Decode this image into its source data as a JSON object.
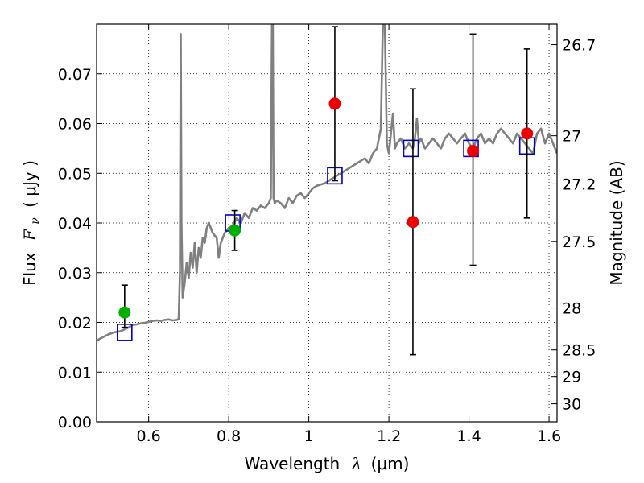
{
  "chart_data": {
    "type": "scatter",
    "xlabel": {
      "prefix": "Wavelength",
      "symbol": "λ",
      "unit": "(μm)"
    },
    "ylabel": {
      "prefix": "Flux",
      "symbol": "F",
      "subscript": "ν",
      "unit": "( μJy )"
    },
    "ylabel_right": "Magnitude (AB)",
    "xlim": [
      0.47,
      1.62
    ],
    "ylim": [
      0.0,
      0.08
    ],
    "grid": true,
    "x_ticks": [
      {
        "value": 0.6,
        "label": "0.6"
      },
      {
        "value": 0.8,
        "label": "0.8"
      },
      {
        "value": 1.0,
        "label": "1"
      },
      {
        "value": 1.2,
        "label": "1.2"
      },
      {
        "value": 1.4,
        "label": "1.4"
      },
      {
        "value": 1.6,
        "label": "1.6"
      }
    ],
    "y_ticks": [
      {
        "value": 0.0,
        "label": "0.00"
      },
      {
        "value": 0.01,
        "label": "0.01"
      },
      {
        "value": 0.02,
        "label": "0.02"
      },
      {
        "value": 0.03,
        "label": "0.03"
      },
      {
        "value": 0.04,
        "label": "0.04"
      },
      {
        "value": 0.05,
        "label": "0.05"
      },
      {
        "value": 0.06,
        "label": "0.06"
      },
      {
        "value": 0.07,
        "label": "0.07"
      }
    ],
    "right_ticks": [
      {
        "mag": 26.7,
        "label": "26.7"
      },
      {
        "mag": 27.0,
        "label": "27"
      },
      {
        "mag": 27.2,
        "label": "27.2"
      },
      {
        "mag": 27.5,
        "label": "27.5"
      },
      {
        "mag": 28.0,
        "label": "28"
      },
      {
        "mag": 28.5,
        "label": "28.5"
      },
      {
        "mag": 29.0,
        "label": "29"
      },
      {
        "mag": 30.0,
        "label": "30"
      }
    ],
    "colors": {
      "model": "#808080",
      "model_photometry": "#0000cc",
      "detection": "#00b000",
      "non_detection": "#ee0000",
      "errorbar": "#000000",
      "grid": "#000000"
    },
    "model_spectrum": {
      "x": [
        0.47,
        0.48,
        0.49,
        0.5,
        0.51,
        0.52,
        0.53,
        0.54,
        0.55,
        0.56,
        0.57,
        0.58,
        0.59,
        0.6,
        0.61,
        0.62,
        0.63,
        0.64,
        0.65,
        0.66,
        0.67,
        0.675,
        0.678,
        0.68,
        0.682,
        0.685,
        0.69,
        0.695,
        0.7,
        0.705,
        0.71,
        0.715,
        0.72,
        0.725,
        0.73,
        0.735,
        0.74,
        0.745,
        0.75,
        0.76,
        0.77,
        0.775,
        0.78,
        0.79,
        0.8,
        0.81,
        0.82,
        0.83,
        0.84,
        0.85,
        0.86,
        0.87,
        0.88,
        0.89,
        0.9,
        0.905,
        0.908,
        0.91,
        0.912,
        0.915,
        0.92,
        0.93,
        0.94,
        0.95,
        0.96,
        0.97,
        0.98,
        0.99,
        1.0,
        1.01,
        1.02,
        1.04,
        1.06,
        1.08,
        1.1,
        1.12,
        1.14,
        1.15,
        1.16,
        1.17,
        1.18,
        1.185,
        1.19,
        1.195,
        1.2,
        1.205,
        1.21,
        1.215,
        1.22,
        1.23,
        1.24,
        1.25,
        1.26,
        1.265,
        1.27,
        1.275,
        1.28,
        1.29,
        1.3,
        1.31,
        1.32,
        1.33,
        1.34,
        1.35,
        1.36,
        1.37,
        1.38,
        1.39,
        1.4,
        1.41,
        1.42,
        1.43,
        1.44,
        1.45,
        1.46,
        1.47,
        1.48,
        1.49,
        1.5,
        1.51,
        1.52,
        1.53,
        1.54,
        1.55,
        1.56,
        1.57,
        1.58,
        1.59,
        1.6,
        1.61,
        1.62
      ],
      "y": [
        0.0163,
        0.0168,
        0.0172,
        0.0176,
        0.0179,
        0.0181,
        0.0182,
        0.0186,
        0.019,
        0.0195,
        0.0196,
        0.0198,
        0.0199,
        0.0201,
        0.0203,
        0.0204,
        0.0203,
        0.0205,
        0.0206,
        0.0204,
        0.0205,
        0.0207,
        0.03,
        0.078,
        0.04,
        0.025,
        0.028,
        0.032,
        0.029,
        0.034,
        0.031,
        0.036,
        0.03,
        0.035,
        0.033,
        0.037,
        0.036,
        0.039,
        0.04,
        0.038,
        0.037,
        0.033,
        0.036,
        0.038,
        0.039,
        0.0395,
        0.041,
        0.04,
        0.042,
        0.041,
        0.043,
        0.0425,
        0.0435,
        0.043,
        0.044,
        0.045,
        0.08,
        0.08,
        0.045,
        0.044,
        0.0445,
        0.044,
        0.043,
        0.045,
        0.044,
        0.0455,
        0.046,
        0.045,
        0.046,
        0.047,
        0.0475,
        0.048,
        0.049,
        0.05,
        0.051,
        0.052,
        0.053,
        0.052,
        0.054,
        0.055,
        0.059,
        0.08,
        0.08,
        0.056,
        0.054,
        0.058,
        0.062,
        0.055,
        0.056,
        0.057,
        0.055,
        0.056,
        0.055,
        0.057,
        0.061,
        0.056,
        0.057,
        0.055,
        0.056,
        0.057,
        0.056,
        0.055,
        0.057,
        0.058,
        0.057,
        0.056,
        0.057,
        0.058,
        0.056,
        0.055,
        0.057,
        0.058,
        0.056,
        0.057,
        0.056,
        0.058,
        0.059,
        0.058,
        0.057,
        0.056,
        0.058,
        0.057,
        0.056,
        0.055,
        0.054,
        0.058,
        0.059,
        0.056,
        0.058,
        0.056,
        0.054
      ]
    },
    "model_photometry": [
      {
        "x": 0.54,
        "y": 0.018
      },
      {
        "x": 0.81,
        "y": 0.04
      },
      {
        "x": 1.065,
        "y": 0.0495
      },
      {
        "x": 1.255,
        "y": 0.055
      },
      {
        "x": 1.405,
        "y": 0.055
      },
      {
        "x": 1.545,
        "y": 0.0555
      }
    ],
    "observations": [
      {
        "x": 0.54,
        "y": 0.022,
        "err_low": 0.019,
        "err_high": 0.0275,
        "band": "detection"
      },
      {
        "x": 0.815,
        "y": 0.0385,
        "err_low": 0.0345,
        "err_high": 0.0425,
        "band": "detection"
      },
      {
        "x": 1.065,
        "y": 0.064,
        "err_low": 0.0485,
        "err_high": 0.0795,
        "band": "non_detection"
      },
      {
        "x": 1.26,
        "y": 0.0402,
        "err_low": 0.0135,
        "err_high": 0.067,
        "band": "non_detection"
      },
      {
        "x": 1.41,
        "y": 0.0545,
        "err_low": 0.0315,
        "err_high": 0.078,
        "band": "non_detection"
      },
      {
        "x": 1.545,
        "y": 0.058,
        "err_low": 0.041,
        "err_high": 0.075,
        "band": "non_detection"
      }
    ]
  }
}
